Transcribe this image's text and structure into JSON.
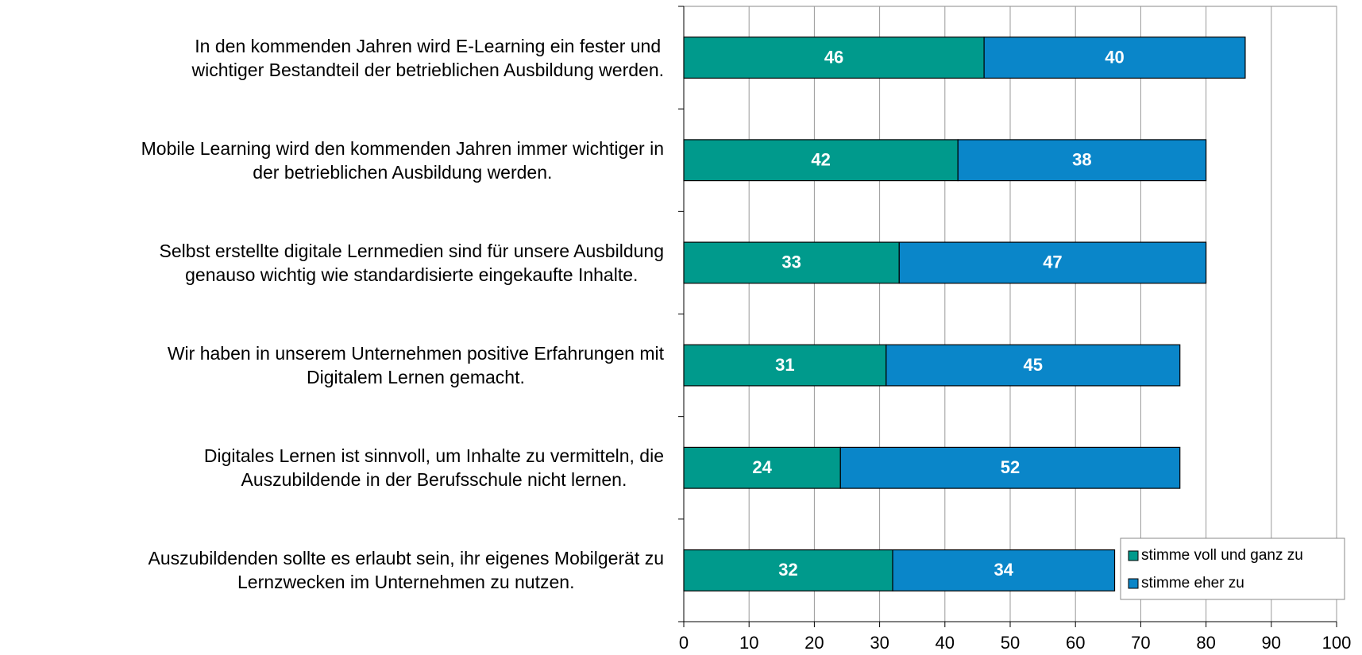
{
  "chart_data": {
    "type": "stacked_barh",
    "categories": [
      "In den kommenden Jahren wird E-Learning ein fester und\nwichtiger Bestandteil der betrieblichen Ausbildung werden.",
      "Mobile Learning wird den kommenden Jahren immer wichtiger in\nder betrieblichen Ausbildung werden.",
      "Selbst erstellte digitale Lernmedien sind für unsere Ausbildung\ngenauso wichtig wie standardisierte eingekaufte Inhalte.",
      "Wir haben in unserem Unternehmen positive Erfahrungen mit\nDigitalem Lernen gemacht.",
      "Digitales Lernen ist sinnvoll, um Inhalte zu vermitteln, die\nAuszubildende in der Berufsschule nicht lernen.",
      "Auszubildenden sollte es erlaubt sein, ihr eigenes Mobilgerät zu\nLernzwecken im Unternehmen zu nutzen."
    ],
    "series": [
      {
        "name": "stimme voll und ganz zu",
        "color": "#009a8c",
        "values": [
          46,
          42,
          33,
          31,
          24,
          32
        ]
      },
      {
        "name": "stimme eher zu",
        "color": "#0a86c9",
        "values": [
          40,
          38,
          47,
          45,
          52,
          34
        ]
      }
    ],
    "xlim": [
      0,
      100
    ],
    "xticks": [
      0,
      10,
      20,
      30,
      40,
      50,
      60,
      70,
      80,
      90,
      100
    ],
    "grid": true,
    "legend": "lower right"
  }
}
